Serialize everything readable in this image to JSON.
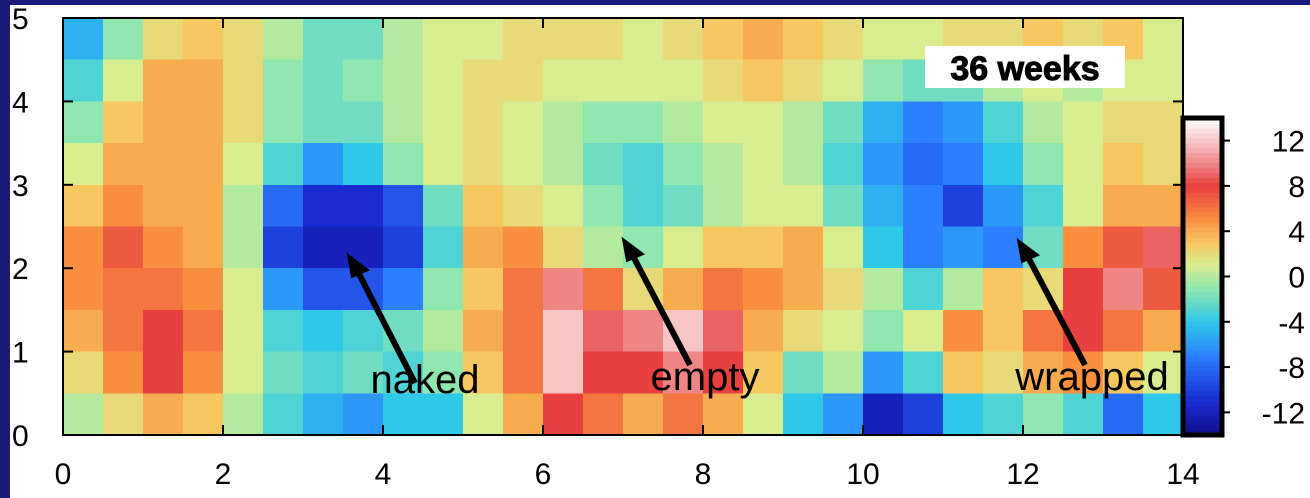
{
  "chart_data": {
    "type": "heatmap",
    "xlim": [
      0,
      14
    ],
    "xticks": [
      0,
      2,
      4,
      6,
      8,
      10,
      12,
      14
    ],
    "ylim": [
      0,
      5
    ],
    "yticks": [
      0,
      1,
      2,
      3,
      4,
      5
    ],
    "clim": [
      -14,
      14
    ],
    "cticks": [
      -12,
      -8,
      -4,
      0,
      4,
      8,
      12
    ],
    "colorscale": [
      [
        -14,
        "#10108a"
      ],
      [
        -11,
        "#1a2ad0"
      ],
      [
        -7,
        "#2a80ff"
      ],
      [
        -4,
        "#30c8e8"
      ],
      [
        -1,
        "#90e8b0"
      ],
      [
        1,
        "#d8ec90"
      ],
      [
        3,
        "#f8c860"
      ],
      [
        5,
        "#f89040"
      ],
      [
        8,
        "#e84040"
      ],
      [
        11,
        "#f4a8a8"
      ],
      [
        14,
        "#ffffff"
      ]
    ],
    "z": [
      [
        -5,
        -1,
        2,
        3,
        2,
        0,
        -2,
        -2,
        0,
        1,
        1,
        2,
        2,
        2,
        1,
        2,
        3,
        4,
        3,
        2,
        1,
        1,
        2,
        2,
        3,
        2,
        3,
        1
      ],
      [
        -3,
        1,
        4,
        4,
        2,
        -1,
        -2,
        -1,
        0,
        1,
        2,
        2,
        1,
        1,
        1,
        1,
        2,
        3,
        2,
        1,
        -1,
        -2,
        -2,
        0,
        1,
        0,
        1,
        1
      ],
      [
        -1,
        3,
        4,
        4,
        2,
        -1,
        -2,
        -2,
        0,
        1,
        2,
        1,
        0,
        -1,
        -1,
        0,
        1,
        1,
        0,
        -2,
        -5,
        -7,
        -6,
        -3,
        0,
        1,
        2,
        2
      ],
      [
        1,
        4,
        4,
        4,
        1,
        -3,
        -6,
        -4,
        -1,
        1,
        2,
        1,
        0,
        -2,
        -3,
        -1,
        0,
        1,
        0,
        -3,
        -6,
        -8,
        -7,
        -4,
        -1,
        1,
        3,
        2
      ],
      [
        3,
        5,
        4,
        4,
        0,
        -8,
        -11,
        -11,
        -9,
        -2,
        3,
        2,
        1,
        -1,
        -3,
        -2,
        0,
        1,
        1,
        -2,
        -5,
        -7,
        -10,
        -6,
        -3,
        1,
        4,
        4
      ],
      [
        5,
        7,
        5,
        4,
        0,
        -10,
        -12,
        -12,
        -10,
        -3,
        4,
        5,
        2,
        0,
        -1,
        1,
        3,
        3,
        4,
        1,
        -4,
        -7,
        -6,
        -7,
        -2,
        5,
        7,
        9
      ],
      [
        5,
        6,
        6,
        5,
        1,
        -6,
        -9,
        -9,
        -7,
        -1,
        3,
        6,
        10,
        6,
        2,
        4,
        6,
        5,
        4,
        2,
        0,
        -3,
        0,
        3,
        2,
        8,
        10,
        7
      ],
      [
        4,
        6,
        8,
        6,
        1,
        -3,
        -4,
        -3,
        -2,
        0,
        4,
        6,
        12,
        9,
        10,
        12,
        9,
        4,
        2,
        1,
        -1,
        1,
        5,
        3,
        6,
        8,
        6,
        4
      ],
      [
        2,
        5,
        8,
        5,
        1,
        -2,
        -3,
        -2,
        -3,
        -1,
        3,
        6,
        12,
        8,
        8,
        10,
        8,
        3,
        -2,
        0,
        -6,
        -3,
        3,
        2,
        4,
        5,
        3,
        1
      ],
      [
        0,
        2,
        4,
        3,
        0,
        -3,
        -5,
        -6,
        -4,
        -4,
        1,
        4,
        8,
        6,
        4,
        6,
        4,
        1,
        -4,
        -6,
        -12,
        -10,
        -4,
        -3,
        -1,
        -3,
        -8,
        -4
      ]
    ],
    "title": "36 weeks",
    "annotations": [
      "naked",
      "empty",
      "wrapped"
    ]
  }
}
